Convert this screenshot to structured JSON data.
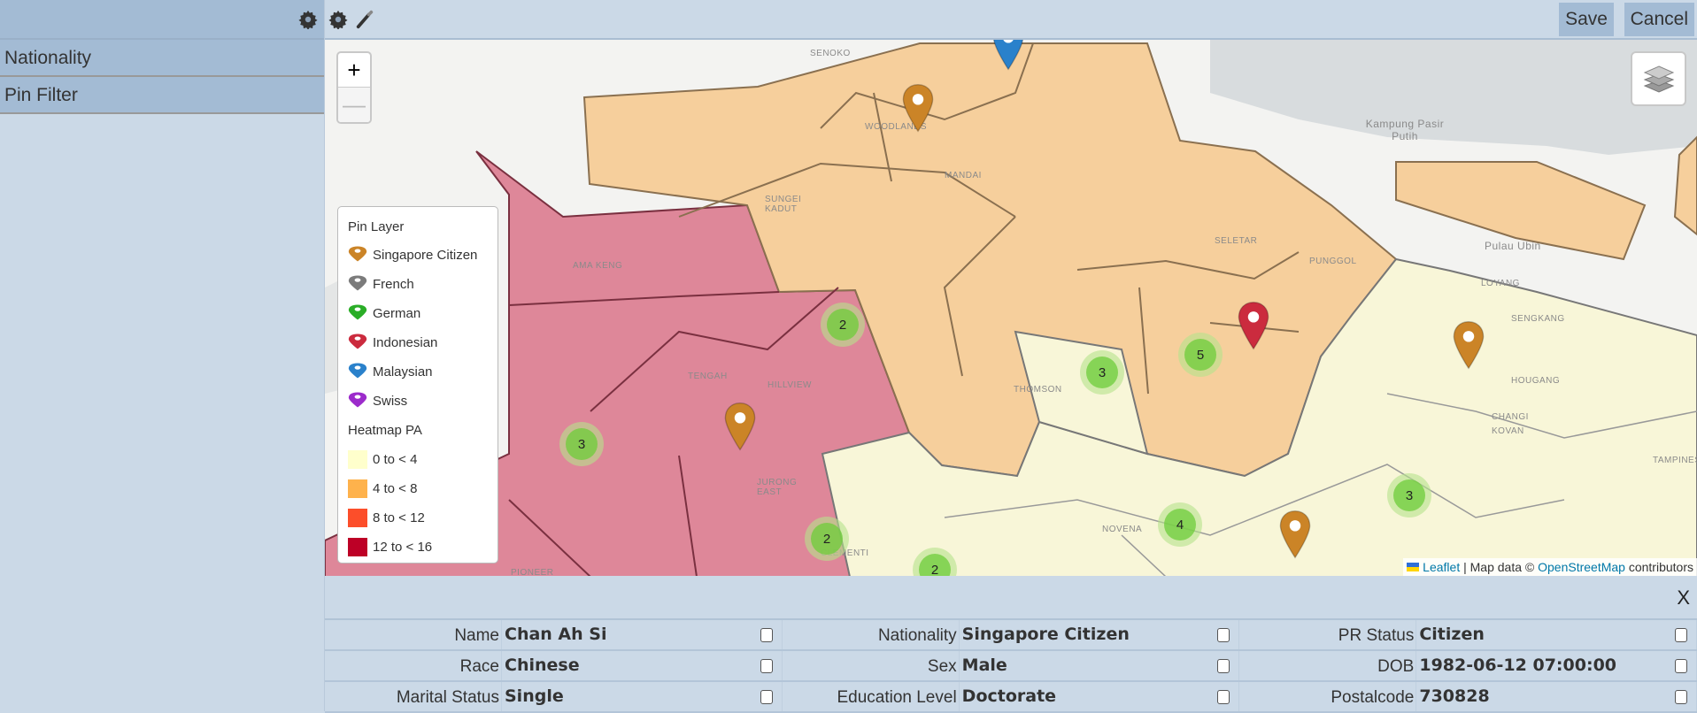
{
  "sidebar": {
    "items": [
      {
        "label": "Nationality"
      },
      {
        "label": "Pin Filter"
      }
    ]
  },
  "toolbar": {
    "save_label": "Save",
    "cancel_label": "Cancel"
  },
  "map": {
    "zoom_in": "+",
    "zoom_out": "—",
    "labels": [
      "Senoko",
      "Woodlands",
      "Mandai",
      "Sungei Kadut",
      "Ama Keng",
      "Tengah",
      "Hillview",
      "Jurong East",
      "Seletar",
      "Punggol",
      "Sengkang",
      "Hougang",
      "Kovan",
      "Thomson",
      "Novena",
      "Tampines",
      "Changi",
      "Kampung Pasir Putih",
      "Pulau Ubin",
      "Loyang",
      "Pioneer",
      "Clementi"
    ],
    "clusters": [
      "2",
      "3",
      "3",
      "5",
      "4",
      "3",
      "2",
      "2"
    ],
    "attribution": {
      "leaflet": "Leaflet",
      "sep": "| Map data ©",
      "osm": "OpenStreetMap",
      "contrib": "contributors"
    }
  },
  "legend": {
    "pin_title": "Pin Layer",
    "pins": [
      {
        "label": "Singapore Citizen",
        "color": "#cb8427"
      },
      {
        "label": "French",
        "color": "#7b7b7b"
      },
      {
        "label": "German",
        "color": "#2aad27"
      },
      {
        "label": "Indonesian",
        "color": "#cb2b3e"
      },
      {
        "label": "Malaysian",
        "color": "#2a81cb"
      },
      {
        "label": "Swiss",
        "color": "#9c2bcb"
      }
    ],
    "heat_title": "Heatmap PA",
    "heat": [
      {
        "label": "0 to < 4",
        "color": "#ffffcc"
      },
      {
        "label": "4 to < 8",
        "color": "#feb24c"
      },
      {
        "label": "8 to < 12",
        "color": "#fc4e2a"
      },
      {
        "label": "12 to < 16",
        "color": "#bd0026"
      }
    ]
  },
  "details": {
    "close": "X",
    "rows": [
      [
        {
          "label": "Name",
          "value": "Chan Ah Si"
        },
        {
          "label": "Nationality",
          "value": "Singapore Citizen"
        },
        {
          "label": "PR Status",
          "value": "Citizen"
        }
      ],
      [
        {
          "label": "Race",
          "value": "Chinese"
        },
        {
          "label": "Sex",
          "value": "Male"
        },
        {
          "label": "DOB",
          "value": "1982-06-12 07:00:00"
        }
      ],
      [
        {
          "label": "Marital Status",
          "value": "Single"
        },
        {
          "label": "Education Level",
          "value": "Doctorate"
        },
        {
          "label": "Postalcode",
          "value": "730828"
        }
      ]
    ]
  }
}
